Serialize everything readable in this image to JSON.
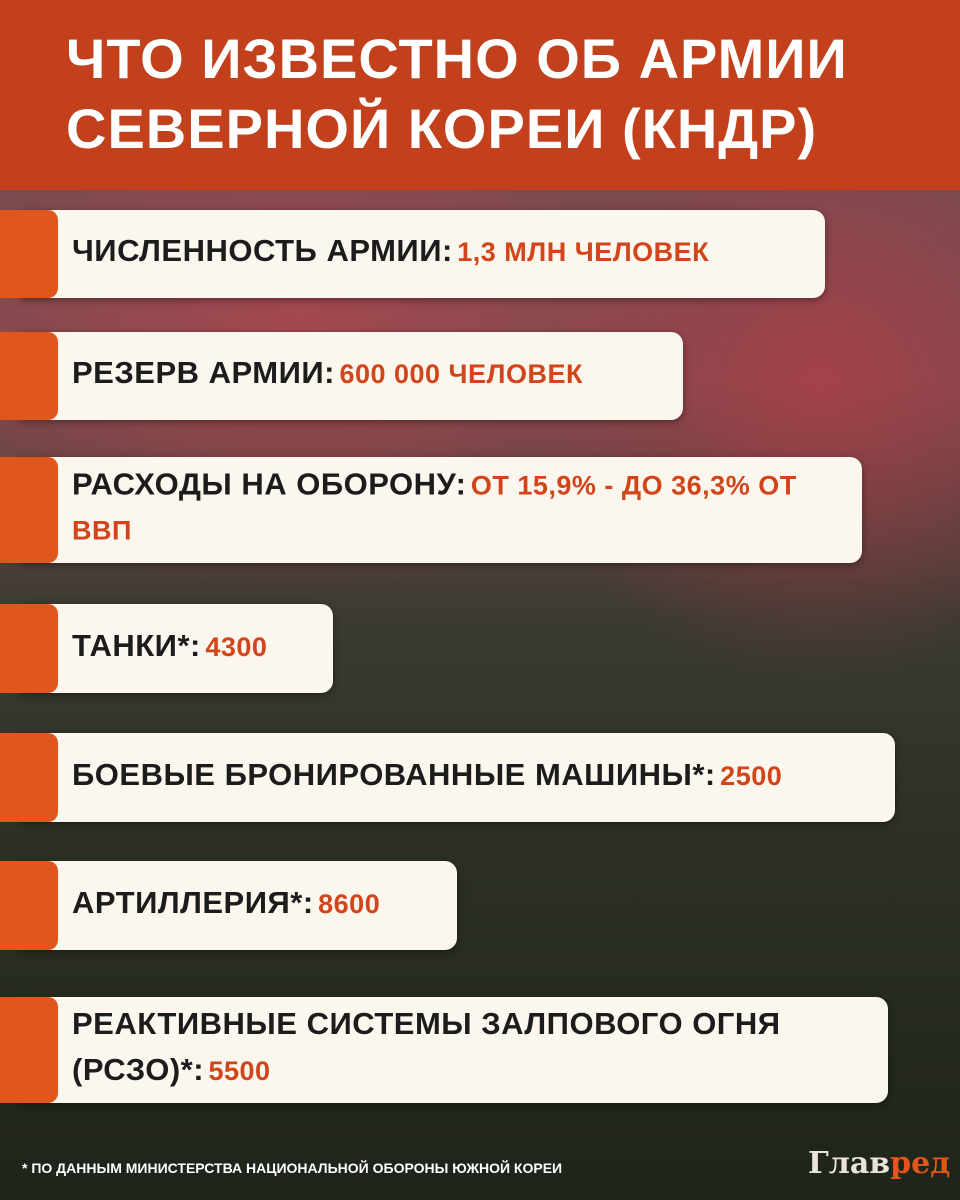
{
  "header": {
    "title": [
      "ЧТО ИЗВЕСТНО ОБ АРМИИ",
      "СЕВЕРНОЙ КОРЕИ (КНДР)"
    ]
  },
  "items": [
    {
      "label": "ЧИСЛЕННОСТЬ АРМИИ:",
      "value": "1,3 МЛН ЧЕЛОВЕК"
    },
    {
      "label": "РЕЗЕРВ АРМИИ:",
      "value": "600 000 ЧЕЛОВЕК"
    },
    {
      "label": "РАСХОДЫ НА ОБОРОНУ:",
      "value": "ОТ 15,9% - ДО 36,3% ОТ ВВП"
    },
    {
      "label": "ТАНКИ*:",
      "value": "4300"
    },
    {
      "label": "БОЕВЫЕ БРОНИРОВАННЫЕ МАШИНЫ*:",
      "value": "2500"
    },
    {
      "label": "АРТИЛЛЕРИЯ*:",
      "value": "8600"
    },
    {
      "label": "РЕАКТИВНЫЕ СИСТЕМЫ ЗАЛПОВОГО ОГНЯ (РСЗО)*:",
      "value": "5500"
    }
  ],
  "footnote": "* ПО ДАННЫМ МИНИСТЕРСТВА НАЦИОНАЛЬНОЙ ОБОРОНЫ ЮЖНОЙ КОРЕИ",
  "logo": {
    "main": "Глав",
    "accent": "ред"
  }
}
